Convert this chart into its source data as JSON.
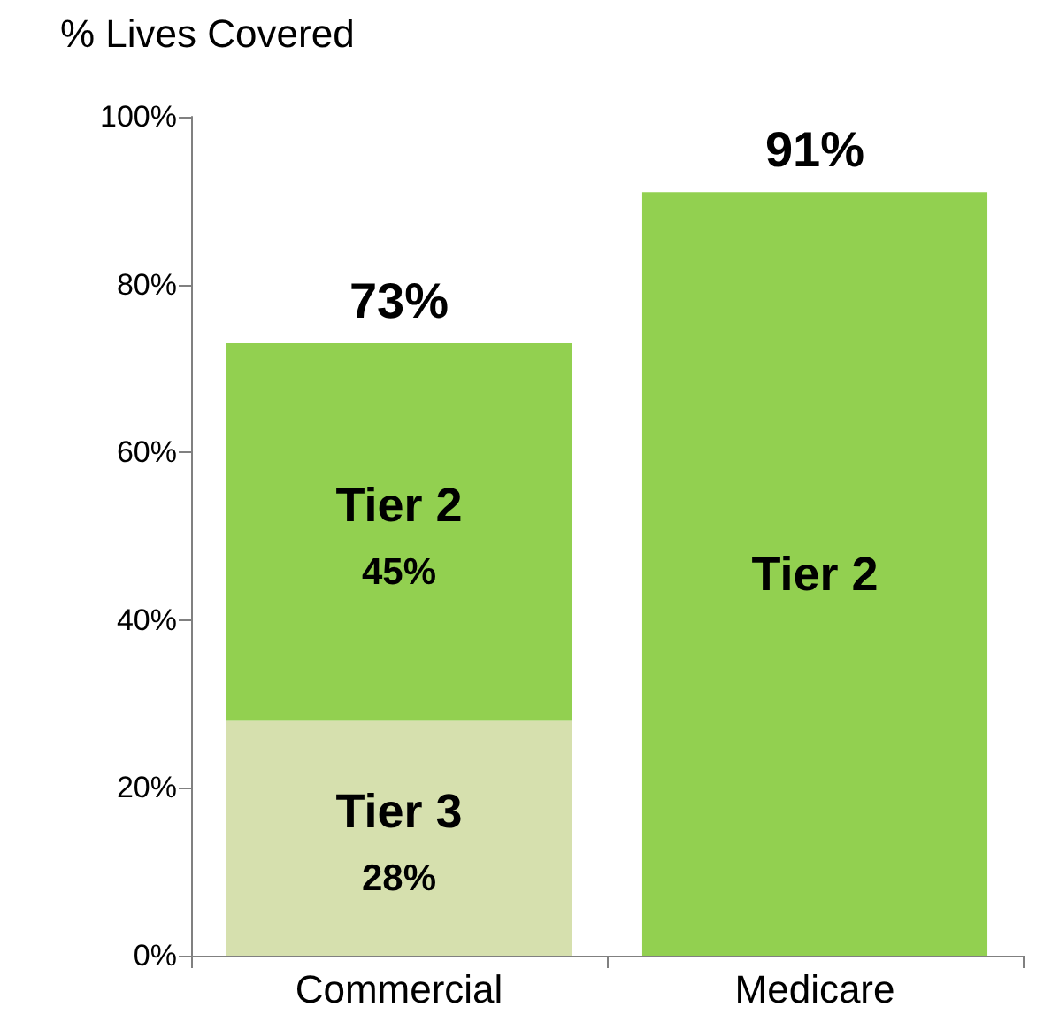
{
  "chart_data": {
    "type": "bar",
    "stacked": true,
    "ylabel": "% Lives Covered",
    "categories": [
      "Commercial",
      "Medicare"
    ],
    "series": [
      {
        "name": "Tier 3",
        "color": "#d6e0ae",
        "values": [
          28,
          null
        ],
        "value_labels": [
          "28%",
          null
        ]
      },
      {
        "name": "Tier 2",
        "color": "#92d050",
        "values": [
          45,
          91
        ],
        "value_labels": [
          "45%",
          null
        ]
      }
    ],
    "totals": [
      "73%",
      "91%"
    ],
    "ylim": [
      0,
      100
    ],
    "yticks": [
      {
        "value": 0,
        "label": "0%"
      },
      {
        "value": 20,
        "label": "20%"
      },
      {
        "value": 40,
        "label": "40%"
      },
      {
        "value": 60,
        "label": "60%"
      },
      {
        "value": 80,
        "label": "80%"
      },
      {
        "value": 100,
        "label": "100%"
      }
    ],
    "grid": false,
    "legend": false
  }
}
